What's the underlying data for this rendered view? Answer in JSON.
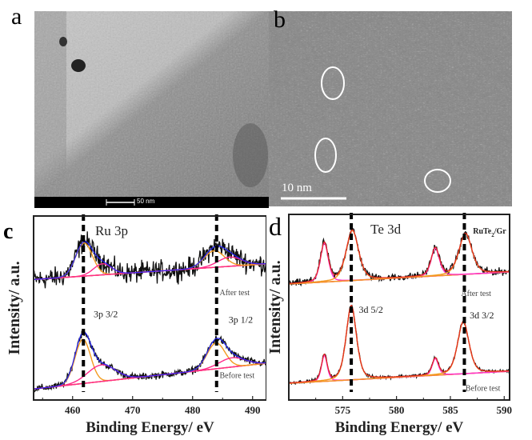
{
  "panels": {
    "a": {
      "label": "a",
      "scale_bar": "50 nm"
    },
    "b": {
      "label": "b",
      "scale_bar": "10 nm"
    }
  },
  "colors": {
    "data": "#111111",
    "fit_main": "#f39a1e",
    "fit_c_sub": "#ff2a8a",
    "fit_d_sub": "#ff30d0",
    "envelope_c": "#2222ff",
    "envelope_d": "#e5261e",
    "baseline": "#ff2a8a"
  },
  "chart_data": [
    {
      "id": "c",
      "panel_label": "c",
      "type": "line",
      "title": "Ru 3p",
      "xlabel": "Binding Energy/ eV",
      "ylabel": "Intensity/ a.u.",
      "xlim": [
        453.5,
        492.3
      ],
      "ylim": [
        0,
        1
      ],
      "xticks": [
        460,
        470,
        480,
        490
      ],
      "marker_lines": [
        461.8,
        484.0
      ],
      "annotations": [
        {
          "text": "3p 3/2",
          "x": 463.5,
          "y": 0.45
        },
        {
          "text": "3p 1/2",
          "x": 486.0,
          "y": 0.42
        },
        {
          "text": "After test",
          "x": 484.5,
          "y": 0.57
        },
        {
          "text": "Before test",
          "x": 484.5,
          "y": 0.12
        }
      ],
      "series": [
        {
          "name": "After test",
          "noise": 0.035,
          "baseline": [
            0.655,
            0.74
          ],
          "components": [
            {
              "center": 461.9,
              "height": 0.18,
              "sigma": 1.4,
              "kind": "main"
            },
            {
              "center": 465.0,
              "height": 0.06,
              "sigma": 1.5,
              "kind": "sub"
            },
            {
              "center": 483.6,
              "height": 0.09,
              "sigma": 1.7,
              "kind": "main"
            },
            {
              "center": 486.2,
              "height": 0.05,
              "sigma": 2.0,
              "kind": "sub"
            }
          ]
        },
        {
          "name": "Before test",
          "noise": 0.012,
          "baseline": [
            0.06,
            0.2
          ],
          "components": [
            {
              "center": 461.7,
              "height": 0.24,
              "sigma": 1.3,
              "kind": "main"
            },
            {
              "center": 464.8,
              "height": 0.09,
              "sigma": 2.3,
              "kind": "sub"
            },
            {
              "center": 483.9,
              "height": 0.14,
              "sigma": 1.5,
              "kind": "main"
            },
            {
              "center": 486.6,
              "height": 0.05,
              "sigma": 2.2,
              "kind": "sub"
            }
          ]
        }
      ]
    },
    {
      "id": "d",
      "panel_label": "d",
      "type": "line",
      "title": "Te 3d",
      "sample_label": "RuTe2/Gr",
      "sample_label_main": "RuTe",
      "sample_label_sub": "2",
      "sample_label_tail": "/Gr",
      "xlabel": "Binding Energy/ eV",
      "ylabel": "Intensity/ a.u.",
      "xlim": [
        570.0,
        590.5
      ],
      "ylim": [
        0,
        1
      ],
      "xticks": [
        575,
        580,
        585,
        590
      ],
      "marker_lines": [
        575.8,
        586.3
      ],
      "annotations": [
        {
          "text": "3d 5/2",
          "x": 576.5,
          "y": 0.47
        },
        {
          "text": "3d 3/2",
          "x": 586.8,
          "y": 0.44
        },
        {
          "text": "After test",
          "x": 586.0,
          "y": 0.56
        },
        {
          "text": "Before test",
          "x": 586.4,
          "y": 0.05
        }
      ],
      "series": [
        {
          "name": "After test",
          "noise": 0.012,
          "baseline": [
            0.625,
            0.69
          ],
          "components": [
            {
              "center": 573.3,
              "height": 0.21,
              "sigma": 0.38,
              "kind": "sub"
            },
            {
              "center": 575.9,
              "height": 0.27,
              "sigma": 0.6,
              "kind": "main"
            },
            {
              "center": 583.6,
              "height": 0.15,
              "sigma": 0.4,
              "kind": "sub"
            },
            {
              "center": 586.4,
              "height": 0.22,
              "sigma": 0.62,
              "kind": "main"
            }
          ]
        },
        {
          "name": "Before test",
          "noise": 0.005,
          "baseline": [
            0.09,
            0.155
          ],
          "components": [
            {
              "center": 573.3,
              "height": 0.14,
              "sigma": 0.28,
              "kind": "sub"
            },
            {
              "center": 575.8,
              "height": 0.4,
              "sigma": 0.5,
              "kind": "main"
            },
            {
              "center": 583.6,
              "height": 0.09,
              "sigma": 0.3,
              "kind": "sub"
            },
            {
              "center": 586.2,
              "height": 0.28,
              "sigma": 0.55,
              "kind": "main"
            }
          ]
        }
      ]
    }
  ]
}
